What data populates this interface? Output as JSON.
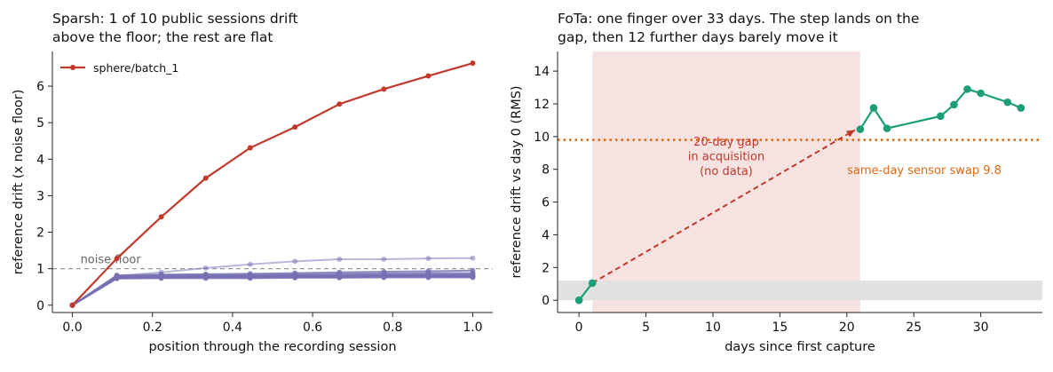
{
  "colors": {
    "highlight": "#c0392b",
    "background_sessions": "#7570b3",
    "fota": "#1b9e77",
    "threshold": "#e06a10",
    "gap_fill": "#f6e3e1",
    "floor_band": "#e2e2e2",
    "noise_line": "#999999"
  },
  "chart_data": [
    {
      "type": "line",
      "title": "Sparsh: 1 of 10 public sessions drift\nabove the floor; the rest are flat",
      "xlabel": "position through the recording session",
      "ylabel": "reference drift  (x noise floor)",
      "xlim": [
        -0.05,
        1.05
      ],
      "ylim": [
        -0.2,
        6.95
      ],
      "xticks": [
        0.0,
        0.2,
        0.4,
        0.6,
        0.8,
        1.0
      ],
      "xtick_labels": [
        "0.0",
        "0.2",
        "0.4",
        "0.6",
        "0.8",
        "1.0"
      ],
      "yticks": [
        0,
        1,
        2,
        3,
        4,
        5,
        6
      ],
      "ytick_labels": [
        "0",
        "1",
        "2",
        "3",
        "4",
        "5",
        "6"
      ],
      "grid": false,
      "legend_position": "top-left",
      "x": [
        0.0,
        0.111,
        0.222,
        0.333,
        0.444,
        0.556,
        0.667,
        0.778,
        0.889,
        1.0
      ],
      "series": [
        {
          "name": "sphere/batch_1",
          "highlight": true,
          "values": [
            0.0,
            1.28,
            2.42,
            3.48,
            4.31,
            4.88,
            5.51,
            5.92,
            6.28,
            6.63
          ]
        },
        {
          "values": [
            0.0,
            0.8,
            0.9,
            1.02,
            1.12,
            1.2,
            1.26,
            1.26,
            1.28,
            1.29
          ]
        },
        {
          "values": [
            0.0,
            0.82,
            0.84,
            0.85,
            0.86,
            0.88,
            0.9,
            0.92,
            0.93,
            0.95
          ]
        },
        {
          "values": [
            0.0,
            0.8,
            0.82,
            0.83,
            0.84,
            0.85,
            0.86,
            0.87,
            0.88,
            0.88
          ]
        },
        {
          "values": [
            0.0,
            0.78,
            0.79,
            0.8,
            0.81,
            0.82,
            0.83,
            0.84,
            0.84,
            0.85
          ]
        },
        {
          "values": [
            0.0,
            0.77,
            0.78,
            0.79,
            0.8,
            0.8,
            0.81,
            0.82,
            0.82,
            0.82
          ]
        },
        {
          "values": [
            0.0,
            0.76,
            0.77,
            0.78,
            0.79,
            0.8,
            0.8,
            0.81,
            0.81,
            0.8
          ]
        },
        {
          "values": [
            0.0,
            0.75,
            0.76,
            0.77,
            0.77,
            0.78,
            0.78,
            0.79,
            0.79,
            0.79
          ]
        },
        {
          "values": [
            0.0,
            0.74,
            0.75,
            0.76,
            0.76,
            0.77,
            0.77,
            0.78,
            0.78,
            0.78
          ]
        },
        {
          "values": [
            0.0,
            0.73,
            0.74,
            0.74,
            0.74,
            0.75,
            0.75,
            0.76,
            0.76,
            0.76
          ]
        }
      ],
      "reference_line": {
        "y": 1.0,
        "label": "noise floor"
      }
    },
    {
      "type": "line",
      "title": "FoTa: one finger over 33 days. The step lands on the\ngap, then 12 further days barely move it",
      "xlabel": "days since first capture",
      "ylabel": "reference drift vs day 0 (RMS)",
      "xlim": [
        -1.6,
        34.6
      ],
      "ylim": [
        -0.75,
        15.2
      ],
      "xticks": [
        0,
        5,
        10,
        15,
        20,
        25,
        30
      ],
      "xtick_labels": [
        "0",
        "5",
        "10",
        "15",
        "20",
        "25",
        "30"
      ],
      "yticks": [
        0,
        2,
        4,
        6,
        8,
        10,
        12,
        14
      ],
      "ytick_labels": [
        "0",
        "2",
        "4",
        "6",
        "8",
        "10",
        "12",
        "14"
      ],
      "grid": false,
      "series": [
        {
          "days": [
            0,
            1
          ],
          "values": [
            0.0,
            1.05
          ]
        },
        {
          "days": [
            21,
            22,
            23,
            27,
            28,
            29,
            30,
            32,
            33
          ],
          "values": [
            10.45,
            11.75,
            10.5,
            11.25,
            11.95,
            12.9,
            12.65,
            12.1,
            11.75
          ]
        }
      ],
      "gap": {
        "from_day": 1,
        "to_day": 21,
        "label": "20-day gap\nin acquisition\n(no data)"
      },
      "jump_arrow": {
        "from": [
          1,
          1.05
        ],
        "to": [
          20.6,
          10.4
        ]
      },
      "threshold": {
        "y": 9.8,
        "label": "same-day sensor swap 9.8"
      },
      "floor_band": {
        "y_from": 0.0,
        "y_to": 1.2
      }
    }
  ]
}
